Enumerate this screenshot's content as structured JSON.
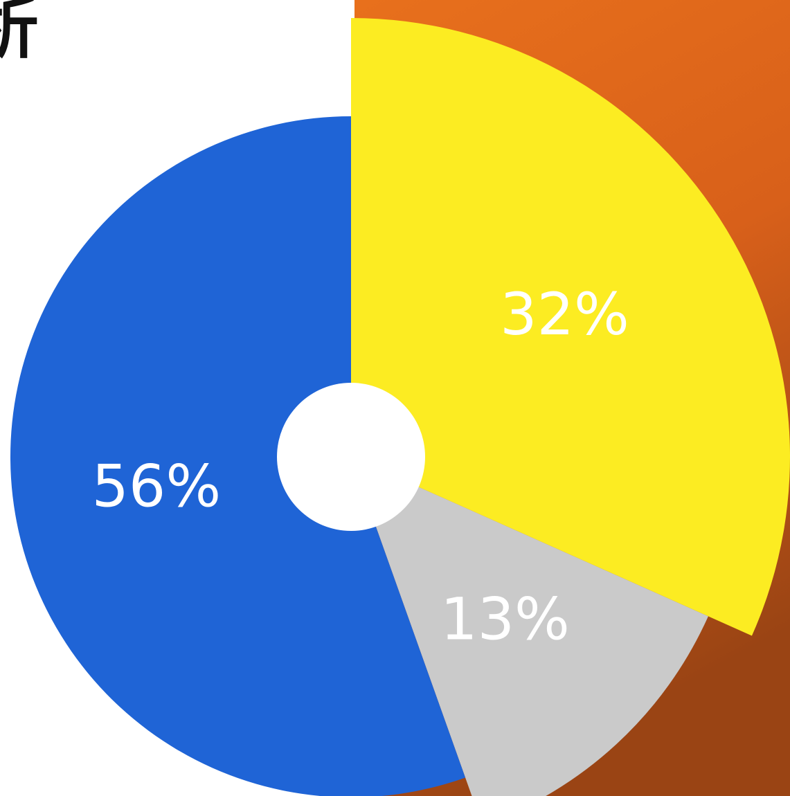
{
  "chart_data": {
    "type": "pie",
    "title": "析",
    "categories": [
      null,
      null,
      null
    ],
    "values": [
      32,
      13,
      56
    ],
    "value_labels": [
      "32%",
      "13%",
      "56%"
    ],
    "colors": [
      "#fcec22",
      "#cacaca",
      "#1f64d6"
    ]
  }
}
